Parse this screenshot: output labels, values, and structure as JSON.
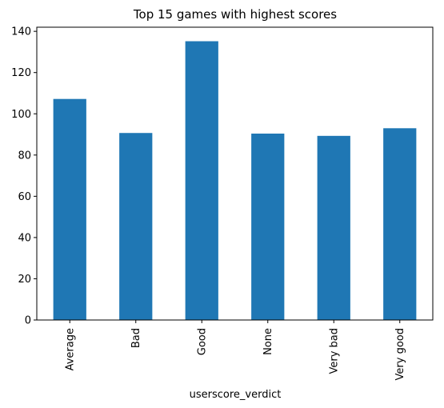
{
  "chart_data": {
    "type": "bar",
    "title": "Top 15 games with highest scores",
    "xlabel": "userscore_verdict",
    "ylabel": "",
    "categories": [
      "Average",
      "Bad",
      "Good",
      "None",
      "Very bad",
      "Very good"
    ],
    "values": [
      107.2,
      90.7,
      135.2,
      90.4,
      89.3,
      93.0
    ],
    "ylim": [
      0,
      142
    ],
    "yticks": [
      0,
      20,
      40,
      60,
      80,
      100,
      120,
      140
    ],
    "bar_color": "#1f77b4",
    "grid": false,
    "legend": "none"
  }
}
